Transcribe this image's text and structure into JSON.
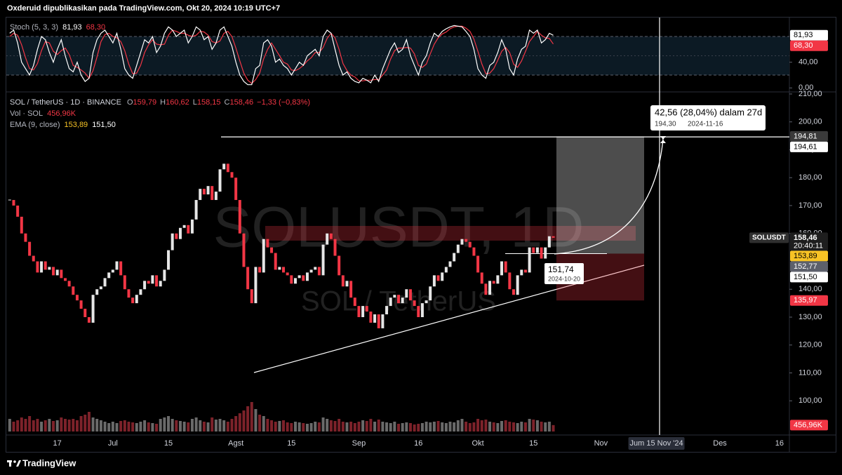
{
  "header": "Oxderuid dipublikasikan pada TradingView.com, Okt 20, 2024 10:19 UTC+7",
  "footer": "TradingView",
  "chart_data": {
    "type": "candlestick",
    "watermark": "SOLUSDT, 1D",
    "watermark_sub": "SOL / TetherUS",
    "legend": {
      "symbol": "SOL / TetherUS · 1D · BINANCE",
      "ohlc": [
        [
          "O",
          "159,79"
        ],
        [
          "H",
          "160,62"
        ],
        [
          "L",
          "158,15"
        ],
        [
          "C",
          "158,46"
        ]
      ],
      "change": "−1,33 (−0,83%)",
      "volume": "Vol · SOL",
      "volume_value": "456,96K",
      "ema": "EMA (9, close)",
      "ema_values": [
        "153,89",
        "151,50"
      ],
      "stoch": "Stoch (5, 3, 3)",
      "stoch_values": [
        "81,93",
        "68,30"
      ]
    },
    "categories": [
      null,
      null,
      null,
      null,
      null,
      null,
      null,
      null,
      null,
      null,
      null,
      null,
      "17",
      null,
      null,
      null,
      null,
      null,
      null,
      null,
      null,
      null,
      null,
      null,
      null,
      null,
      "Jul",
      null,
      null,
      null,
      null,
      null,
      null,
      null,
      null,
      null,
      null,
      null,
      null,
      null,
      "15",
      null,
      null,
      null,
      null,
      null,
      null,
      null,
      null,
      null,
      null,
      null,
      null,
      null,
      null,
      null,
      null,
      "Agst",
      null,
      null,
      null,
      null,
      null,
      null,
      null,
      null,
      null,
      null,
      null,
      null,
      null,
      "15",
      null,
      null,
      null,
      null,
      null,
      null,
      null,
      null,
      null,
      null,
      null,
      null,
      null,
      null,
      null,
      null,
      "Sep",
      null,
      null,
      null,
      null,
      null,
      null,
      null,
      null,
      null,
      null,
      null,
      null,
      null,
      null,
      "16",
      null,
      null,
      null,
      null,
      null,
      null,
      null,
      null,
      null,
      null,
      null,
      null,
      null,
      null,
      "Okt",
      null,
      null,
      null,
      null,
      null,
      null,
      null,
      null,
      null,
      null,
      null,
      null,
      null,
      "15",
      null,
      null,
      null,
      null,
      null
    ],
    "future_categories": [
      null,
      null,
      null,
      null,
      null,
      null,
      null,
      null,
      null,
      null,
      null,
      "Nov",
      null,
      null,
      null,
      null,
      null,
      null,
      null,
      null,
      null,
      null,
      null,
      null,
      null,
      "Jum 15 Nov '24",
      null,
      null,
      null,
      null,
      null,
      null,
      null,
      null,
      null,
      null,
      null,
      null,
      null,
      null,
      null,
      "Des",
      null,
      null,
      null,
      null,
      null,
      null,
      null,
      null,
      null,
      null,
      null,
      null,
      null,
      null,
      "16",
      null,
      null
    ],
    "close": [
      172,
      170,
      166,
      160,
      157,
      152,
      150,
      146,
      150,
      147,
      148,
      145,
      147,
      144,
      143,
      141,
      138,
      136,
      133,
      130,
      128,
      138,
      140,
      141,
      144,
      146,
      147,
      150,
      145,
      140,
      137,
      135,
      138,
      140,
      143,
      142,
      145,
      141,
      143,
      147,
      154,
      160,
      158,
      162,
      163,
      160,
      165,
      172,
      176,
      174,
      177,
      172,
      175,
      183,
      185,
      182,
      180,
      172,
      160,
      148,
      140,
      135,
      148,
      146,
      158,
      155,
      153,
      147,
      148,
      146,
      145,
      142,
      144,
      145,
      143,
      146,
      147,
      148,
      145,
      156,
      160,
      158,
      152,
      145,
      141,
      143,
      137,
      134,
      130,
      134,
      132,
      128,
      131,
      126,
      131,
      134,
      137,
      138,
      135,
      137,
      140,
      136,
      134,
      130,
      135,
      136,
      141,
      145,
      143,
      146,
      148,
      150,
      153,
      156,
      158,
      157,
      155,
      152,
      146,
      142,
      138,
      143,
      142,
      145,
      150,
      146,
      140,
      138,
      145,
      147,
      146,
      155,
      153,
      155,
      151,
      155,
      159,
      158.46
    ],
    "volume": [
      900,
      700,
      800,
      1000,
      900,
      1100,
      800,
      900,
      700,
      800,
      900,
      750,
      800,
      1000,
      900,
      850,
      900,
      800,
      1100,
      1200,
      1400,
      1000,
      900,
      800,
      700,
      600,
      700,
      600,
      750,
      800,
      700,
      650,
      600,
      700,
      800,
      650,
      600,
      550,
      900,
      1000,
      1100,
      900,
      800,
      750,
      700,
      650,
      900,
      1000,
      800,
      700,
      650,
      1000,
      850,
      900,
      800,
      700,
      900,
      1100,
      1300,
      1500,
      1800,
      2100,
      1600,
      1200,
      1100,
      900,
      800,
      700,
      750,
      800,
      650,
      600,
      700,
      650,
      600,
      550,
      600,
      700,
      650,
      1000,
      900,
      800,
      750,
      900,
      700,
      650,
      700,
      600,
      700,
      800,
      750,
      900,
      700,
      850,
      700,
      650,
      600,
      700,
      550,
      600,
      650,
      600,
      500,
      550,
      600,
      700,
      650,
      700,
      750,
      650,
      600,
      700,
      650,
      800,
      900,
      700,
      600,
      650,
      900,
      800,
      850,
      700,
      650,
      600,
      750,
      800,
      700,
      650,
      600,
      700,
      650,
      900,
      850,
      800,
      700,
      650,
      700,
      456.96
    ],
    "stoch_k": [
      85,
      90,
      70,
      40,
      30,
      20,
      35,
      60,
      80,
      75,
      55,
      40,
      60,
      75,
      50,
      30,
      25,
      40,
      20,
      10,
      15,
      55,
      75,
      85,
      90,
      80,
      70,
      85,
      60,
      30,
      20,
      15,
      35,
      55,
      75,
      70,
      80,
      55,
      65,
      85,
      95,
      90,
      80,
      85,
      90,
      70,
      80,
      95,
      90,
      75,
      80,
      60,
      70,
      90,
      95,
      80,
      65,
      40,
      20,
      10,
      5,
      5,
      30,
      35,
      70,
      75,
      65,
      40,
      45,
      35,
      30,
      20,
      30,
      40,
      35,
      50,
      55,
      60,
      50,
      80,
      90,
      85,
      60,
      35,
      20,
      25,
      15,
      10,
      8,
      15,
      12,
      8,
      20,
      10,
      30,
      45,
      60,
      70,
      55,
      60,
      75,
      50,
      35,
      20,
      40,
      50,
      70,
      85,
      80,
      88,
      92,
      95,
      97,
      96,
      95,
      88,
      80,
      60,
      30,
      20,
      15,
      35,
      40,
      55,
      75,
      60,
      30,
      20,
      45,
      60,
      65,
      90,
      85,
      90,
      70,
      75,
      85,
      81.93
    ],
    "stoch_d": [
      80,
      85,
      82,
      67,
      47,
      30,
      28,
      38,
      58,
      72,
      70,
      57,
      52,
      58,
      62,
      52,
      35,
      32,
      28,
      23,
      15,
      27,
      48,
      72,
      83,
      85,
      80,
      78,
      72,
      58,
      37,
      22,
      23,
      35,
      55,
      67,
      75,
      68,
      67,
      68,
      82,
      90,
      88,
      85,
      85,
      82,
      80,
      82,
      88,
      87,
      82,
      72,
      70,
      73,
      85,
      88,
      80,
      62,
      42,
      23,
      12,
      7,
      13,
      23,
      45,
      60,
      70,
      60,
      50,
      40,
      37,
      28,
      27,
      30,
      35,
      42,
      47,
      55,
      55,
      63,
      77,
      85,
      78,
      60,
      38,
      27,
      20,
      17,
      11,
      11,
      12,
      12,
      13,
      13,
      20,
      28,
      45,
      58,
      62,
      62,
      63,
      62,
      53,
      35,
      32,
      37,
      53,
      68,
      78,
      84,
      87,
      92,
      95,
      96,
      96,
      93,
      88,
      76,
      57,
      37,
      22,
      23,
      30,
      43,
      57,
      63,
      55,
      37,
      32,
      42,
      57,
      72,
      80,
      88,
      82,
      78,
      77,
      68.3
    ],
    "up_color": "#e6e6e6",
    "down_color": "#f23645",
    "vol_up_color": "#6a6a6a",
    "vol_down_color": "#7d222a",
    "stoch_k_color": "#ffffff",
    "stoch_d_color": "#f23645",
    "ylim": [
      89,
      211.5
    ],
    "yticks": [
      {
        "value": 210,
        "label": "210,00"
      },
      {
        "value": 200,
        "label": "200,00"
      },
      {
        "value": 190,
        "label": "190,00"
      },
      {
        "value": 180,
        "label": "180,00"
      },
      {
        "value": 170,
        "label": "170,00"
      },
      {
        "value": 160,
        "label": "160,00"
      },
      {
        "value": 140,
        "label": "140,00"
      },
      {
        "value": 130,
        "label": "130,00"
      },
      {
        "value": 120,
        "label": "120,00"
      },
      {
        "value": 110,
        "label": "110,00"
      },
      {
        "value": 100,
        "label": "100,00"
      }
    ],
    "vol_ylim": [
      0,
      3000
    ],
    "stoch_ylim": [
      0,
      100
    ],
    "stoch_yticks": [
      {
        "value": 40,
        "label": "40,00"
      },
      {
        "value": 0,
        "label": "0,00"
      }
    ],
    "badges": [
      {
        "value": 194.81,
        "label": "194,81",
        "bg": "#3a3a3a",
        "fg": "#ffffff"
      },
      {
        "value": 194.61,
        "label": "194,61",
        "bg": "#ffffff",
        "fg": "#000000"
      },
      {
        "value": 158.46,
        "label": "158,46",
        "bg": "#1e1e1e",
        "fg": "#ffffff",
        "tag": "SOLUSDT",
        "sub": "20:40:11"
      },
      {
        "value": 153.89,
        "label": "153,89",
        "bg": "#f7c325",
        "fg": "#000000"
      },
      {
        "value": 152.77,
        "label": "152,77",
        "bg": "#5d606b",
        "fg": "#ffffff"
      },
      {
        "value": 151.5,
        "label": "151,50",
        "bg": "#ffffff",
        "fg": "#000000"
      },
      {
        "value": 135.97,
        "label": "135,97",
        "bg": "#f23645",
        "fg": "#ffffff"
      }
    ],
    "vol_badge": {
      "value": 456.96,
      "label": "456,96K",
      "bg": "#f23645",
      "fg": "#ffffff"
    },
    "stoch_badges": [
      {
        "value": 81.93,
        "label": "81,93",
        "bg": "#ffffff",
        "fg": "#000000"
      },
      {
        "value": 68.3,
        "label": "68,30",
        "bg": "#f23645",
        "fg": "#ffffff"
      }
    ],
    "measure": {
      "text": "42,56 (28,04%) dalam 27d",
      "price": "194,30",
      "date": "2024-11-16"
    },
    "point_label": {
      "price": "151,74",
      "date": "2024-10-20"
    }
  }
}
